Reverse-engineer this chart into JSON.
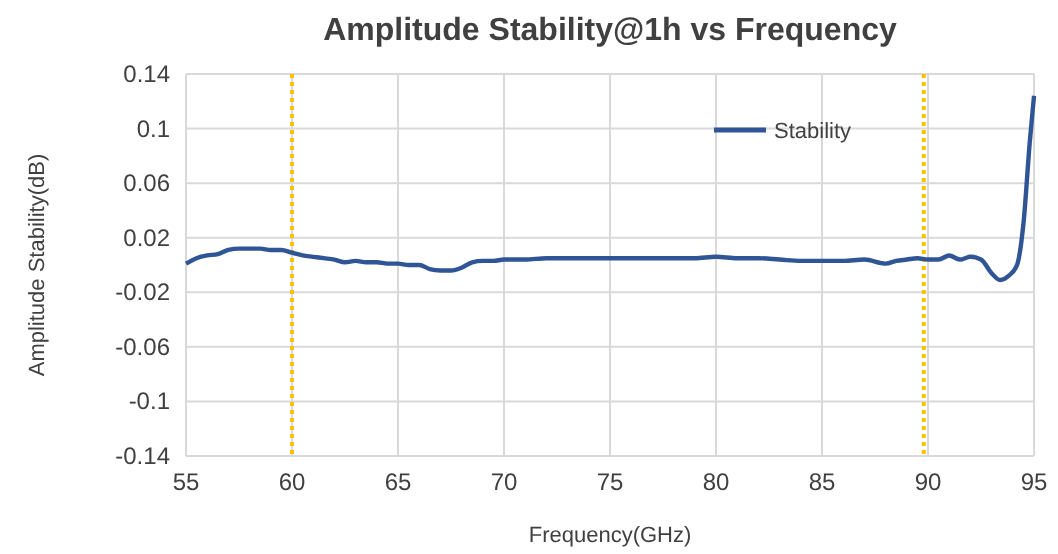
{
  "chart_data": {
    "type": "line",
    "title": "Amplitude Stability@1h vs Frequency",
    "xlabel": "Frequency(GHz)",
    "ylabel": "Amplitude Stability(dB)",
    "x": [
      55,
      55.5,
      56,
      56.5,
      57,
      57.5,
      58,
      58.5,
      59,
      59.5,
      60,
      60.5,
      61,
      61.5,
      62,
      62.5,
      63,
      63.5,
      64,
      64.5,
      65,
      65.5,
      66,
      66.5,
      67,
      67.5,
      68,
      68.5,
      69,
      69.5,
      70,
      71,
      72,
      73,
      74,
      75,
      76,
      77,
      78,
      79,
      80,
      81,
      82,
      83,
      84,
      85,
      86,
      87,
      88,
      88.5,
      89,
      89.5,
      90,
      90.5,
      91,
      91.5,
      92,
      92.5,
      93,
      93.4,
      93.8,
      94.2,
      94.5,
      94.8,
      95
    ],
    "series": [
      {
        "name": "Stability",
        "color": "#2f5597",
        "values": [
          0.001,
          0.005,
          0.007,
          0.008,
          0.011,
          0.012,
          0.012,
          0.012,
          0.011,
          0.011,
          0.009,
          0.007,
          0.006,
          0.005,
          0.004,
          0.002,
          0.003,
          0.002,
          0.002,
          0.001,
          0.001,
          0.0,
          0.0,
          -0.003,
          -0.004,
          -0.004,
          -0.002,
          0.002,
          0.003,
          0.003,
          0.004,
          0.004,
          0.005,
          0.005,
          0.005,
          0.005,
          0.005,
          0.005,
          0.005,
          0.005,
          0.006,
          0.005,
          0.005,
          0.004,
          0.003,
          0.003,
          0.003,
          0.004,
          0.001,
          0.003,
          0.004,
          0.005,
          0.004,
          0.004,
          0.007,
          0.004,
          0.006,
          0.004,
          -0.006,
          -0.011,
          -0.008,
          0.0,
          0.03,
          0.09,
          0.124
        ]
      }
    ],
    "xlim": [
      55,
      95
    ],
    "xticks": [
      55,
      60,
      65,
      70,
      75,
      80,
      85,
      90,
      95
    ],
    "ylim": [
      -0.14,
      0.14
    ],
    "yticks": [
      -0.14,
      -0.1,
      -0.06,
      -0.02,
      0.02,
      0.06,
      0.1,
      0.14
    ],
    "ref_lines": [
      {
        "axis": "x",
        "value": 60,
        "color": "#ffc000",
        "line_style": "dotted"
      },
      {
        "axis": "x",
        "value": 89.8,
        "color": "#ffc000",
        "line_style": "dotted"
      }
    ],
    "grid": true,
    "legend": "top right",
    "marker": "none",
    "line_style": "solid"
  }
}
